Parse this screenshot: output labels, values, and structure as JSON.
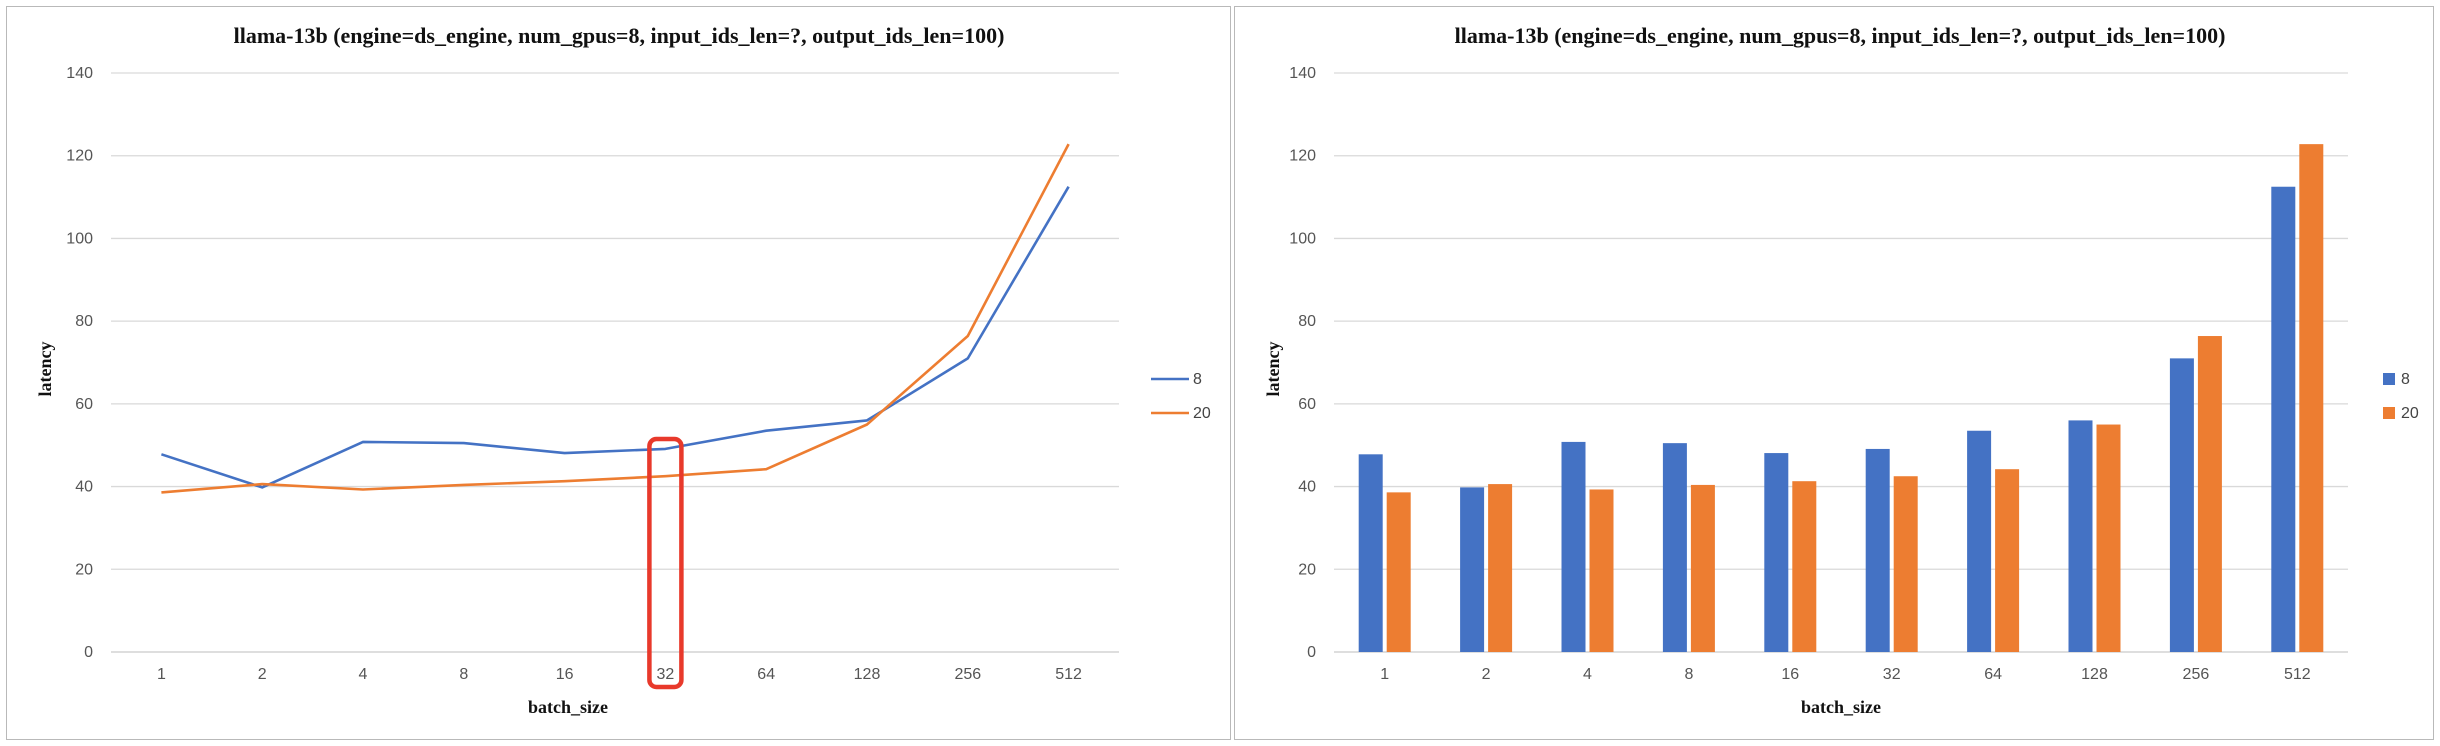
{
  "colors": {
    "series_8": "#4472C4",
    "series_20": "#ED7D31",
    "highlight": "#E8392B"
  },
  "chart_data": [
    {
      "type": "line",
      "title": "llama-13b (engine=ds_engine, num_gpus=8, input_ids_len=?, output_ids_len=100)",
      "xlabel": "batch_size",
      "ylabel": "latency",
      "categories": [
        "1",
        "2",
        "4",
        "8",
        "16",
        "32",
        "64",
        "128",
        "256",
        "512"
      ],
      "ylim": [
        0,
        140
      ],
      "yticks": [
        "0",
        "20",
        "40",
        "60",
        "80",
        "100",
        "120",
        "140"
      ],
      "grid": true,
      "legend_position": "right",
      "highlight_category": "32",
      "series": [
        {
          "name": "8",
          "values": [
            47.8,
            39.8,
            50.8,
            50.5,
            48.1,
            49.1,
            53.5,
            56.0,
            71.0,
            112.5
          ]
        },
        {
          "name": "20",
          "values": [
            38.6,
            40.6,
            39.3,
            40.4,
            41.3,
            42.5,
            44.2,
            55.0,
            76.4,
            122.8
          ]
        }
      ]
    },
    {
      "type": "bar",
      "title": "llama-13b (engine=ds_engine, num_gpus=8, input_ids_len=?, output_ids_len=100)",
      "xlabel": "batch_size",
      "ylabel": "latency",
      "categories": [
        "1",
        "2",
        "4",
        "8",
        "16",
        "32",
        "64",
        "128",
        "256",
        "512"
      ],
      "ylim": [
        0,
        140
      ],
      "yticks": [
        "0",
        "20",
        "40",
        "60",
        "80",
        "100",
        "120",
        "140"
      ],
      "grid": true,
      "legend_position": "right",
      "series": [
        {
          "name": "8",
          "values": [
            47.8,
            39.8,
            50.8,
            50.5,
            48.1,
            49.1,
            53.5,
            56.0,
            71.0,
            112.5
          ]
        },
        {
          "name": "20",
          "values": [
            38.6,
            40.6,
            39.3,
            40.4,
            41.3,
            42.5,
            44.2,
            55.0,
            76.4,
            122.8
          ]
        }
      ]
    }
  ]
}
